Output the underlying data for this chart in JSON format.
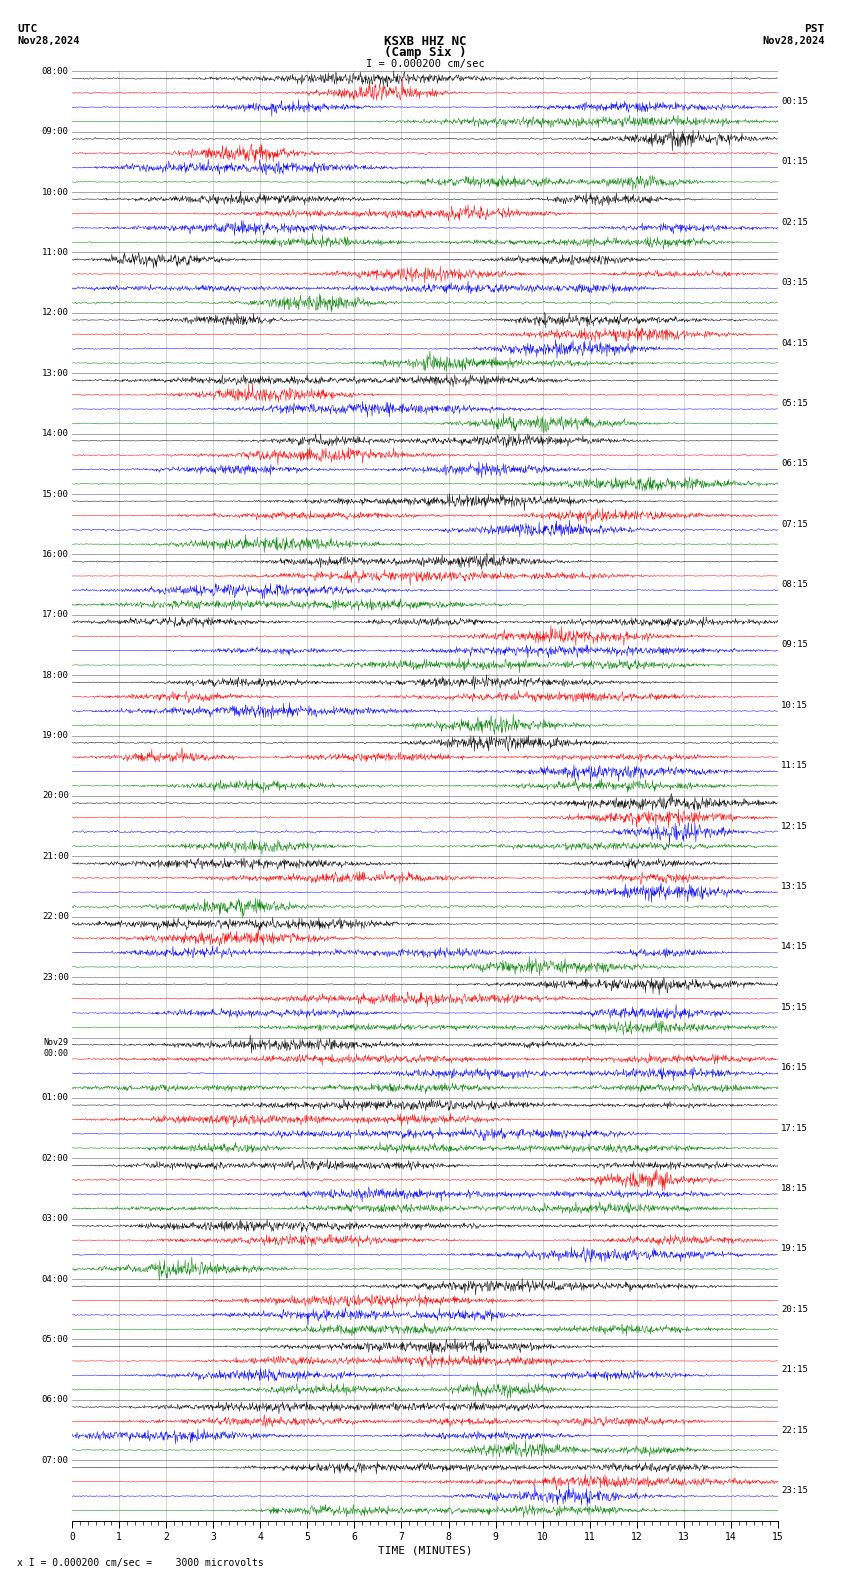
{
  "title_line1": "KSXB HHZ NC",
  "title_line2": "(Camp Six )",
  "scale_label": "I = 0.000200 cm/sec",
  "utc_label": "UTC",
  "date_left": "Nov28,2024",
  "pst_label": "PST",
  "date_right": "Nov28,2024",
  "xlabel": "TIME (MINUTES)",
  "bottom_label": "x I = 0.000200 cm/sec =    3000 microvolts",
  "fig_width": 8.5,
  "fig_height": 15.84,
  "dpi": 100,
  "bg_color": "#ffffff",
  "trace_colors": [
    "black",
    "red",
    "blue",
    "green"
  ],
  "left_times": [
    "08:00",
    "09:00",
    "10:00",
    "11:00",
    "12:00",
    "13:00",
    "14:00",
    "15:00",
    "16:00",
    "17:00",
    "18:00",
    "19:00",
    "20:00",
    "21:00",
    "22:00",
    "23:00",
    "Nov29\n00:00",
    "01:00",
    "02:00",
    "03:00",
    "04:00",
    "05:00",
    "06:00",
    "07:00"
  ],
  "right_times": [
    "00:15",
    "01:15",
    "02:15",
    "03:15",
    "04:15",
    "05:15",
    "06:15",
    "07:15",
    "08:15",
    "09:15",
    "10:15",
    "11:15",
    "12:15",
    "13:15",
    "14:15",
    "15:15",
    "16:15",
    "17:15",
    "18:15",
    "19:15",
    "20:15",
    "21:15",
    "22:15",
    "23:15"
  ],
  "n_rows": 24,
  "n_traces_per_row": 4,
  "minutes_per_row": 15,
  "samples_per_minute": 100,
  "xticks": [
    0,
    1,
    2,
    3,
    4,
    5,
    6,
    7,
    8,
    9,
    10,
    11,
    12,
    13,
    14,
    15
  ],
  "xticklabels": [
    "0",
    "1",
    "2",
    "3",
    "4",
    "5",
    "6",
    "7",
    "8",
    "9",
    "10",
    "11",
    "12",
    "13",
    "14",
    "15"
  ],
  "vertical_line_color": "gray",
  "vertical_lines_x": [
    1,
    2,
    3,
    4,
    5,
    6,
    7,
    8,
    9,
    10,
    11,
    12,
    13,
    14
  ]
}
